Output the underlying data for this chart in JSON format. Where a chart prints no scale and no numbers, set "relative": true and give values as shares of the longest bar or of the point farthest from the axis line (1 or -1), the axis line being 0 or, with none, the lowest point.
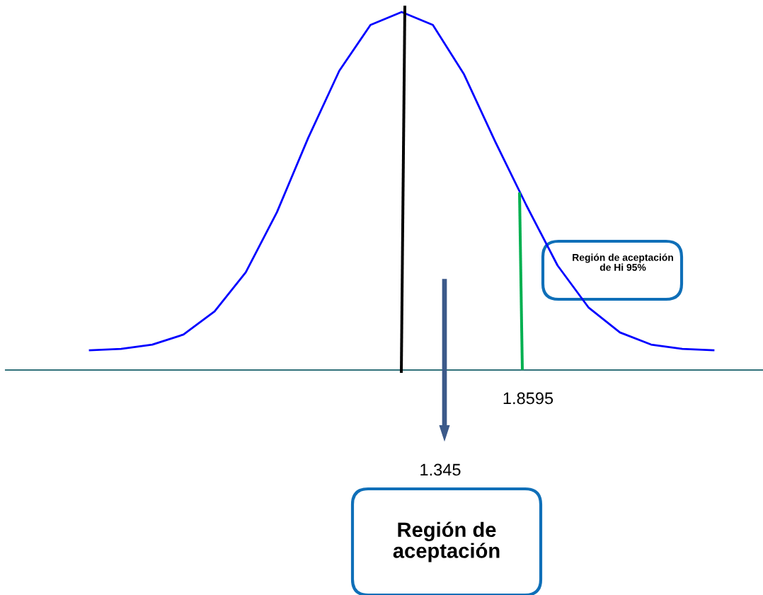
{
  "chart_data": {
    "type": "line",
    "relative": true,
    "color": "#0000ff",
    "categories": [
      null,
      null,
      null,
      null,
      null,
      null,
      null,
      null,
      null,
      null,
      null,
      null,
      null,
      null,
      null,
      null,
      null,
      null,
      null,
      null,
      null
    ],
    "values": [
      0.055,
      0.059,
      0.071,
      0.099,
      0.164,
      0.273,
      0.441,
      0.648,
      0.836,
      0.964,
      1,
      0.964,
      0.826,
      0.638,
      0.46,
      0.292,
      0.174,
      0.105,
      0.071,
      0.059,
      0.055
    ],
    "annotations": [
      "Región de aceptación de Hi 95%",
      "1.8595",
      "1.345",
      "Región de aceptación"
    ]
  }
}
